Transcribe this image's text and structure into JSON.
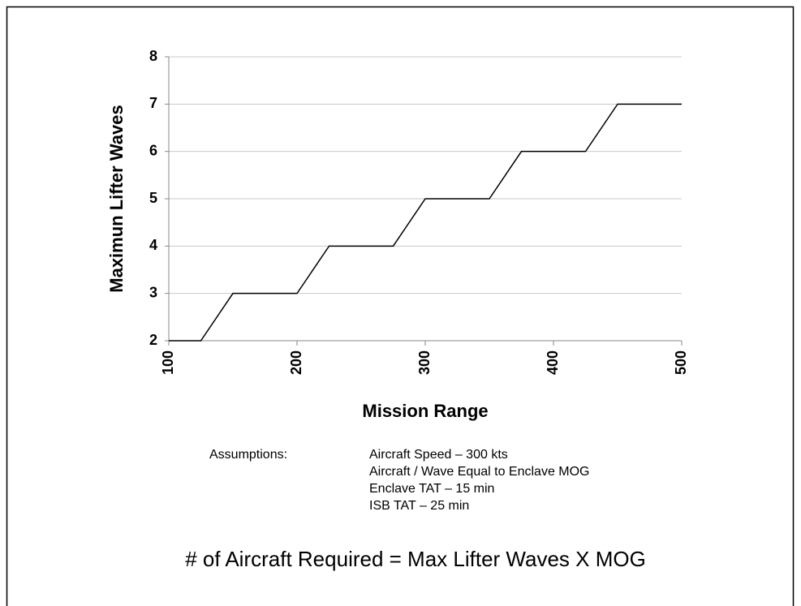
{
  "chart_data": {
    "type": "line",
    "x_label": "Mission Range",
    "y_label": "Maximun Lifter Waves",
    "x": [
      100,
      125,
      150,
      200,
      225,
      275,
      300,
      350,
      375,
      425,
      450,
      500
    ],
    "values": [
      2,
      2,
      3,
      3,
      4,
      4,
      5,
      5,
      6,
      6,
      7,
      7
    ],
    "color": "#000000",
    "xlim": [
      100,
      500
    ],
    "xticks": [
      100,
      200,
      300,
      400,
      500
    ],
    "ylim": [
      2,
      8
    ],
    "yticks": [
      2,
      3,
      4,
      5,
      6,
      7,
      8
    ],
    "grid": true,
    "assumptions_label": "Assumptions:",
    "assumptions": [
      "Aircraft Speed – 300 kts",
      "Aircraft / Wave Equal to Enclave MOG",
      "Enclave TAT – 15 min",
      "ISB TAT – 25 min"
    ],
    "note": "# of Aircraft Required = Max Lifter Waves X MOG"
  }
}
